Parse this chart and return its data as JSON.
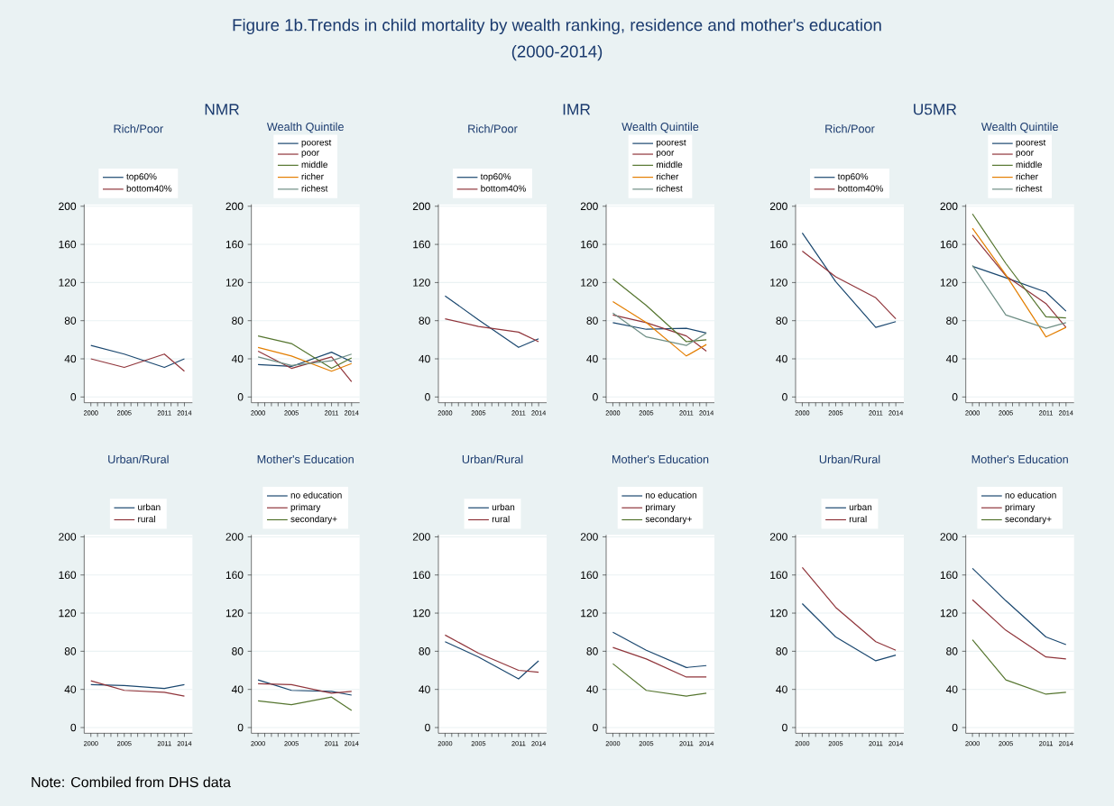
{
  "chart_data": [
    {
      "type": "other",
      "title": "Figure 1b.Trends in child mortality by wealth ranking, residence and mother's education",
      "subtitle": "(2000-2014)",
      "annotations": [
        "NMR",
        "IMR",
        "U5MR",
        "Note: Combiled from DHS data"
      ]
    },
    {
      "type": "line",
      "title": "Rich/Poor",
      "x": [
        2000,
        2005,
        2011,
        2014
      ],
      "xlim": [
        1999,
        2015.2
      ],
      "ylim": [
        -6,
        202
      ],
      "xticks": [
        2000,
        {
          "value": 2001,
          "label": null
        },
        {
          "value": 2002,
          "label": null
        },
        {
          "value": 2003,
          "label": null
        },
        {
          "value": 2004,
          "label": null
        },
        2005,
        {
          "value": 2006,
          "label": null
        },
        {
          "value": 2007,
          "label": null
        },
        {
          "value": 2008,
          "label": null
        },
        {
          "value": 2009,
          "label": null
        },
        {
          "value": 2010,
          "label": null
        },
        2011,
        {
          "value": 2012,
          "label": null
        },
        {
          "value": 2013,
          "label": null
        },
        2014
      ],
      "yticks": [
        0,
        40,
        80,
        120,
        160,
        200
      ],
      "grid": "y",
      "legend": "top",
      "series": [
        {
          "name": "top60%",
          "color": "#1a476f",
          "values": [
            54,
            45,
            31,
            40
          ]
        },
        {
          "name": "bottom40%",
          "color": "#90353b",
          "values": [
            40,
            31,
            45,
            27
          ]
        }
      ]
    },
    {
      "type": "line",
      "title": "Wealth Quintile",
      "x": [
        2000,
        2005,
        2011,
        2014
      ],
      "xlim": [
        1999,
        2015.2
      ],
      "ylim": [
        -6,
        202
      ],
      "xticks": [
        2000,
        {
          "value": 2001,
          "label": null
        },
        {
          "value": 2002,
          "label": null
        },
        {
          "value": 2003,
          "label": null
        },
        {
          "value": 2004,
          "label": null
        },
        2005,
        {
          "value": 2006,
          "label": null
        },
        {
          "value": 2007,
          "label": null
        },
        {
          "value": 2008,
          "label": null
        },
        {
          "value": 2009,
          "label": null
        },
        {
          "value": 2010,
          "label": null
        },
        2011,
        {
          "value": 2012,
          "label": null
        },
        {
          "value": 2013,
          "label": null
        },
        2014
      ],
      "yticks": [
        0,
        40,
        80,
        120,
        160,
        200
      ],
      "grid": "y",
      "legend": "top",
      "series": [
        {
          "name": "poorest",
          "color": "#1a476f",
          "values": [
            34,
            32,
            47,
            37
          ]
        },
        {
          "name": "poor",
          "color": "#90353b",
          "values": [
            48,
            30,
            42,
            16
          ]
        },
        {
          "name": "middle",
          "color": "#55752f",
          "values": [
            64,
            56,
            30,
            41
          ]
        },
        {
          "name": "richer",
          "color": "#e37e00",
          "values": [
            52,
            43,
            27,
            35
          ]
        },
        {
          "name": "richest",
          "color": "#6e8e84",
          "values": [
            42,
            33,
            38,
            45
          ]
        }
      ]
    },
    {
      "type": "line",
      "title": "Rich/Poor",
      "x": [
        2000,
        2005,
        2011,
        2014
      ],
      "xlim": [
        1999,
        2015.2
      ],
      "ylim": [
        -6,
        202
      ],
      "xticks": [
        2000,
        {
          "value": 2001,
          "label": null
        },
        {
          "value": 2002,
          "label": null
        },
        {
          "value": 2003,
          "label": null
        },
        {
          "value": 2004,
          "label": null
        },
        2005,
        {
          "value": 2006,
          "label": null
        },
        {
          "value": 2007,
          "label": null
        },
        {
          "value": 2008,
          "label": null
        },
        {
          "value": 2009,
          "label": null
        },
        {
          "value": 2010,
          "label": null
        },
        2011,
        {
          "value": 2012,
          "label": null
        },
        {
          "value": 2013,
          "label": null
        },
        2014
      ],
      "yticks": [
        0,
        40,
        80,
        120,
        160,
        200
      ],
      "grid": "y",
      "legend": "top",
      "series": [
        {
          "name": "top60%",
          "color": "#1a476f",
          "values": [
            106,
            81,
            52,
            61
          ]
        },
        {
          "name": "bottom40%",
          "color": "#90353b",
          "values": [
            82,
            74,
            68,
            58
          ]
        }
      ]
    },
    {
      "type": "line",
      "title": "Wealth Quintile",
      "x": [
        2000,
        2005,
        2011,
        2014
      ],
      "xlim": [
        1999,
        2015.2
      ],
      "ylim": [
        -6,
        202
      ],
      "xticks": [
        2000,
        {
          "value": 2001,
          "label": null
        },
        {
          "value": 2002,
          "label": null
        },
        {
          "value": 2003,
          "label": null
        },
        {
          "value": 2004,
          "label": null
        },
        2005,
        {
          "value": 2006,
          "label": null
        },
        {
          "value": 2007,
          "label": null
        },
        {
          "value": 2008,
          "label": null
        },
        {
          "value": 2009,
          "label": null
        },
        {
          "value": 2010,
          "label": null
        },
        2011,
        {
          "value": 2012,
          "label": null
        },
        {
          "value": 2013,
          "label": null
        },
        2014
      ],
      "yticks": [
        0,
        40,
        80,
        120,
        160,
        200
      ],
      "grid": "y",
      "legend": "top",
      "series": [
        {
          "name": "poorest",
          "color": "#1a476f",
          "values": [
            78,
            71,
            72,
            67
          ]
        },
        {
          "name": "poor",
          "color": "#90353b",
          "values": [
            86,
            78,
            64,
            48
          ]
        },
        {
          "name": "middle",
          "color": "#55752f",
          "values": [
            124,
            96,
            58,
            60
          ]
        },
        {
          "name": "richer",
          "color": "#e37e00",
          "values": [
            100,
            78,
            43,
            55
          ]
        },
        {
          "name": "richest",
          "color": "#6e8e84",
          "values": [
            88,
            63,
            54,
            67
          ]
        }
      ]
    },
    {
      "type": "line",
      "title": "Rich/Poor",
      "x": [
        2000,
        2005,
        2011,
        2014
      ],
      "xlim": [
        1999,
        2015.2
      ],
      "ylim": [
        -6,
        202
      ],
      "xticks": [
        2000,
        {
          "value": 2001,
          "label": null
        },
        {
          "value": 2002,
          "label": null
        },
        {
          "value": 2003,
          "label": null
        },
        {
          "value": 2004,
          "label": null
        },
        2005,
        {
          "value": 2006,
          "label": null
        },
        {
          "value": 2007,
          "label": null
        },
        {
          "value": 2008,
          "label": null
        },
        {
          "value": 2009,
          "label": null
        },
        {
          "value": 2010,
          "label": null
        },
        2011,
        {
          "value": 2012,
          "label": null
        },
        {
          "value": 2013,
          "label": null
        },
        2014
      ],
      "yticks": [
        0,
        40,
        80,
        120,
        160,
        200
      ],
      "grid": "y",
      "legend": "top",
      "series": [
        {
          "name": "top60%",
          "color": "#1a476f",
          "values": [
            172,
            121,
            73,
            79
          ]
        },
        {
          "name": "bottom40%",
          "color": "#90353b",
          "values": [
            153,
            126,
            104,
            82
          ]
        }
      ]
    },
    {
      "type": "line",
      "title": "Wealth Quintile",
      "x": [
        2000,
        2005,
        2011,
        2014
      ],
      "xlim": [
        1999,
        2015.2
      ],
      "ylim": [
        -6,
        202
      ],
      "xticks": [
        2000,
        {
          "value": 2001,
          "label": null
        },
        {
          "value": 2002,
          "label": null
        },
        {
          "value": 2003,
          "label": null
        },
        {
          "value": 2004,
          "label": null
        },
        2005,
        {
          "value": 2006,
          "label": null
        },
        {
          "value": 2007,
          "label": null
        },
        {
          "value": 2008,
          "label": null
        },
        {
          "value": 2009,
          "label": null
        },
        {
          "value": 2010,
          "label": null
        },
        2011,
        {
          "value": 2012,
          "label": null
        },
        {
          "value": 2013,
          "label": null
        },
        2014
      ],
      "yticks": [
        0,
        40,
        80,
        120,
        160,
        200
      ],
      "grid": "y",
      "legend": "top",
      "series": [
        {
          "name": "poorest",
          "color": "#1a476f",
          "values": [
            137,
            125,
            110,
            90
          ]
        },
        {
          "name": "poor",
          "color": "#90353b",
          "values": [
            170,
            127,
            98,
            73
          ]
        },
        {
          "name": "middle",
          "color": "#55752f",
          "values": [
            192,
            140,
            84,
            83
          ]
        },
        {
          "name": "richer",
          "color": "#e37e00",
          "values": [
            177,
            128,
            63,
            73
          ]
        },
        {
          "name": "richest",
          "color": "#6e8e84",
          "values": [
            138,
            86,
            72,
            78
          ]
        }
      ]
    },
    {
      "type": "line",
      "title": "Urban/Rural",
      "x": [
        2000,
        2005,
        2011,
        2014
      ],
      "xlim": [
        1999,
        2015.2
      ],
      "ylim": [
        -6,
        202
      ],
      "xticks": [
        2000,
        {
          "value": 2001,
          "label": null
        },
        {
          "value": 2002,
          "label": null
        },
        {
          "value": 2003,
          "label": null
        },
        {
          "value": 2004,
          "label": null
        },
        2005,
        {
          "value": 2006,
          "label": null
        },
        {
          "value": 2007,
          "label": null
        },
        {
          "value": 2008,
          "label": null
        },
        {
          "value": 2009,
          "label": null
        },
        {
          "value": 2010,
          "label": null
        },
        2011,
        {
          "value": 2012,
          "label": null
        },
        {
          "value": 2013,
          "label": null
        },
        2014
      ],
      "yticks": [
        0,
        40,
        80,
        120,
        160,
        200
      ],
      "grid": "y",
      "legend": "top",
      "series": [
        {
          "name": "urban",
          "color": "#1a476f",
          "values": [
            45,
            44,
            41,
            45
          ]
        },
        {
          "name": "rural",
          "color": "#90353b",
          "values": [
            49,
            39,
            37,
            33
          ]
        }
      ]
    },
    {
      "type": "line",
      "title": "Mother's Education",
      "x": [
        2000,
        2005,
        2011,
        2014
      ],
      "xlim": [
        1999,
        2015.2
      ],
      "ylim": [
        -6,
        202
      ],
      "xticks": [
        2000,
        {
          "value": 2001,
          "label": null
        },
        {
          "value": 2002,
          "label": null
        },
        {
          "value": 2003,
          "label": null
        },
        {
          "value": 2004,
          "label": null
        },
        2005,
        {
          "value": 2006,
          "label": null
        },
        {
          "value": 2007,
          "label": null
        },
        {
          "value": 2008,
          "label": null
        },
        {
          "value": 2009,
          "label": null
        },
        {
          "value": 2010,
          "label": null
        },
        2011,
        {
          "value": 2012,
          "label": null
        },
        {
          "value": 2013,
          "label": null
        },
        2014
      ],
      "yticks": [
        0,
        40,
        80,
        120,
        160,
        200
      ],
      "grid": "y",
      "legend": "top",
      "series": [
        {
          "name": "no education",
          "color": "#1a476f",
          "values": [
            50,
            39,
            38,
            34
          ]
        },
        {
          "name": "primary",
          "color": "#90353b",
          "values": [
            46,
            45,
            36,
            38
          ]
        },
        {
          "name": "secondary+",
          "color": "#55752f",
          "values": [
            28,
            24,
            32,
            18
          ]
        }
      ]
    },
    {
      "type": "line",
      "title": "Urban/Rural",
      "x": [
        2000,
        2005,
        2011,
        2014
      ],
      "xlim": [
        1999,
        2015.2
      ],
      "ylim": [
        -6,
        202
      ],
      "xticks": [
        2000,
        {
          "value": 2001,
          "label": null
        },
        {
          "value": 2002,
          "label": null
        },
        {
          "value": 2003,
          "label": null
        },
        {
          "value": 2004,
          "label": null
        },
        2005,
        {
          "value": 2006,
          "label": null
        },
        {
          "value": 2007,
          "label": null
        },
        {
          "value": 2008,
          "label": null
        },
        {
          "value": 2009,
          "label": null
        },
        {
          "value": 2010,
          "label": null
        },
        2011,
        {
          "value": 2012,
          "label": null
        },
        {
          "value": 2013,
          "label": null
        },
        2014
      ],
      "yticks": [
        0,
        40,
        80,
        120,
        160,
        200
      ],
      "grid": "y",
      "legend": "top",
      "series": [
        {
          "name": "urban",
          "color": "#1a476f",
          "values": [
            90,
            74,
            51,
            70
          ]
        },
        {
          "name": "rural",
          "color": "#90353b",
          "values": [
            97,
            78,
            60,
            58
          ]
        }
      ]
    },
    {
      "type": "line",
      "title": "Mother's Education",
      "x": [
        2000,
        2005,
        2011,
        2014
      ],
      "xlim": [
        1999,
        2015.2
      ],
      "ylim": [
        -6,
        202
      ],
      "xticks": [
        2000,
        {
          "value": 2001,
          "label": null
        },
        {
          "value": 2002,
          "label": null
        },
        {
          "value": 2003,
          "label": null
        },
        {
          "value": 2004,
          "label": null
        },
        2005,
        {
          "value": 2006,
          "label": null
        },
        {
          "value": 2007,
          "label": null
        },
        {
          "value": 2008,
          "label": null
        },
        {
          "value": 2009,
          "label": null
        },
        {
          "value": 2010,
          "label": null
        },
        2011,
        {
          "value": 2012,
          "label": null
        },
        {
          "value": 2013,
          "label": null
        },
        2014
      ],
      "yticks": [
        0,
        40,
        80,
        120,
        160,
        200
      ],
      "grid": "y",
      "legend": "top",
      "series": [
        {
          "name": "no education",
          "color": "#1a476f",
          "values": [
            100,
            81,
            63,
            65
          ]
        },
        {
          "name": "primary",
          "color": "#90353b",
          "values": [
            84,
            72,
            53,
            53
          ]
        },
        {
          "name": "secondary+",
          "color": "#55752f",
          "values": [
            67,
            39,
            33,
            36
          ]
        }
      ]
    },
    {
      "type": "line",
      "title": "Urban/Rural",
      "x": [
        2000,
        2005,
        2011,
        2014
      ],
      "xlim": [
        1999,
        2015.2
      ],
      "ylim": [
        -6,
        202
      ],
      "xticks": [
        2000,
        {
          "value": 2001,
          "label": null
        },
        {
          "value": 2002,
          "label": null
        },
        {
          "value": 2003,
          "label": null
        },
        {
          "value": 2004,
          "label": null
        },
        2005,
        {
          "value": 2006,
          "label": null
        },
        {
          "value": 2007,
          "label": null
        },
        {
          "value": 2008,
          "label": null
        },
        {
          "value": 2009,
          "label": null
        },
        {
          "value": 2010,
          "label": null
        },
        2011,
        {
          "value": 2012,
          "label": null
        },
        {
          "value": 2013,
          "label": null
        },
        2014
      ],
      "yticks": [
        0,
        40,
        80,
        120,
        160,
        200
      ],
      "grid": "y",
      "legend": "top",
      "series": [
        {
          "name": "urban",
          "color": "#1a476f",
          "values": [
            130,
            95,
            70,
            76
          ]
        },
        {
          "name": "rural",
          "color": "#90353b",
          "values": [
            168,
            126,
            90,
            81
          ]
        }
      ]
    },
    {
      "type": "line",
      "title": "Mother's Education",
      "x": [
        2000,
        2005,
        2011,
        2014
      ],
      "xlim": [
        1999,
        2015.2
      ],
      "ylim": [
        -6,
        202
      ],
      "xticks": [
        2000,
        {
          "value": 2001,
          "label": null
        },
        {
          "value": 2002,
          "label": null
        },
        {
          "value": 2003,
          "label": null
        },
        {
          "value": 2004,
          "label": null
        },
        2005,
        {
          "value": 2006,
          "label": null
        },
        {
          "value": 2007,
          "label": null
        },
        {
          "value": 2008,
          "label": null
        },
        {
          "value": 2009,
          "label": null
        },
        {
          "value": 2010,
          "label": null
        },
        2011,
        {
          "value": 2012,
          "label": null
        },
        {
          "value": 2013,
          "label": null
        },
        2014
      ],
      "yticks": [
        0,
        40,
        80,
        120,
        160,
        200
      ],
      "grid": "y",
      "legend": "top",
      "series": [
        {
          "name": "no education",
          "color": "#1a476f",
          "values": [
            167,
            133,
            95,
            87
          ]
        },
        {
          "name": "primary",
          "color": "#90353b",
          "values": [
            134,
            102,
            74,
            72
          ]
        },
        {
          "name": "secondary+",
          "color": "#55752f",
          "values": [
            92,
            50,
            35,
            37
          ]
        }
      ]
    }
  ]
}
